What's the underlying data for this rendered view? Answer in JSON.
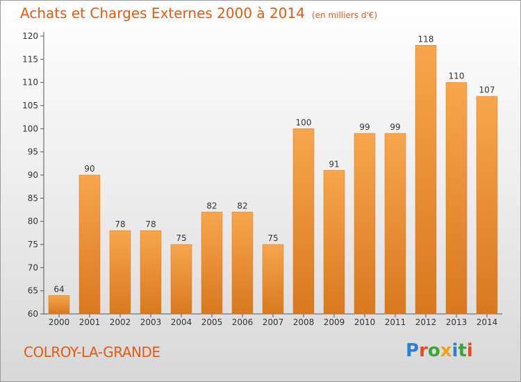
{
  "header": {
    "title": "Achats et Charges Externes 2000 à 2014",
    "unit": "(en milliers d'€)"
  },
  "footer": {
    "commune": "COLROY-LA-GRANDE",
    "logo_text": "Proxiti"
  },
  "colors": {
    "accent": "#e05c14",
    "bar_light": "#f7a64d",
    "bar_dark": "#d9781f",
    "logo_letters": [
      "#2f7fd1",
      "#e64b1e",
      "#3aa63a",
      "#f0a21b",
      "#2f7fd1",
      "#3aa63a",
      "#e64b1e"
    ]
  },
  "chart_data": {
    "type": "bar",
    "title": "Achats et Charges Externes 2000 à 2014",
    "subtitle": "(en milliers d'€)",
    "categories": [
      "2000",
      "2001",
      "2002",
      "2003",
      "2004",
      "2005",
      "2006",
      "2007",
      "2008",
      "2009",
      "2010",
      "2011",
      "2012",
      "2013",
      "2014"
    ],
    "values": [
      64,
      90,
      78,
      78,
      75,
      82,
      82,
      75,
      100,
      91,
      99,
      99,
      118,
      110,
      107
    ],
    "ylim": [
      60,
      120
    ],
    "yticks": [
      60,
      65,
      70,
      75,
      80,
      85,
      90,
      95,
      100,
      105,
      110,
      115,
      120
    ],
    "grid": false,
    "data_labels": true
  }
}
